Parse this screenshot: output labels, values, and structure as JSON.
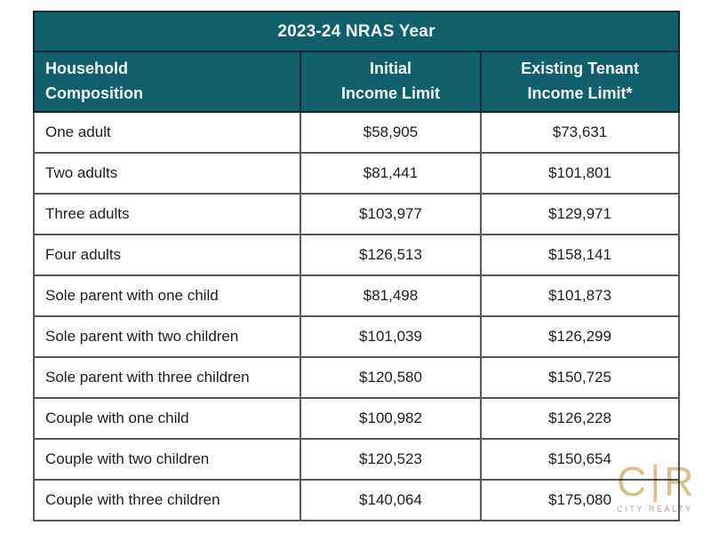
{
  "colors": {
    "header_teal": "#125f6c",
    "header_text": "#f2f8f8",
    "body_text": "#1d1d1d",
    "header_border": "#11272e",
    "body_border": "#565656",
    "logo_tan": "#d7c094",
    "logo_subtext_gray": "#a8a294",
    "background": "#ffffff"
  },
  "table": {
    "title": "2023-24 NRAS Year",
    "headers": [
      {
        "line1": "Household",
        "line2": "Composition"
      },
      {
        "line1": "Initial",
        "line2": "Income Limit"
      },
      {
        "line1": "Existing Tenant",
        "line2": "Income Limit*"
      }
    ]
  },
  "chart_data": {
    "type": "table",
    "title": "2023-24 NRAS Year",
    "columns": [
      "Household Composition",
      "Initial Income Limit",
      "Existing Tenant Income Limit*"
    ],
    "rows": [
      [
        "One adult",
        "$58,905",
        "$73,631"
      ],
      [
        "Two adults",
        "$81,441",
        "$101,801"
      ],
      [
        "Three adults",
        "$103,977",
        "$129,971"
      ],
      [
        "Four adults",
        "$126,513",
        "$158,141"
      ],
      [
        "Sole parent with one child",
        "$81,498",
        "$101,873"
      ],
      [
        "Sole parent with two children",
        "$101,039",
        "$126,299"
      ],
      [
        "Sole parent with three children",
        "$120,580",
        "$150,725"
      ],
      [
        "Couple with one child",
        "$100,982",
        "$126,228"
      ],
      [
        "Couple with two children",
        "$120,523",
        "$150,654"
      ],
      [
        "Couple with three children",
        "$140,064",
        "$175,080"
      ]
    ]
  },
  "logo": {
    "left": "C",
    "bar": "|",
    "right": "R",
    "subtext": "CITY REALTY"
  }
}
